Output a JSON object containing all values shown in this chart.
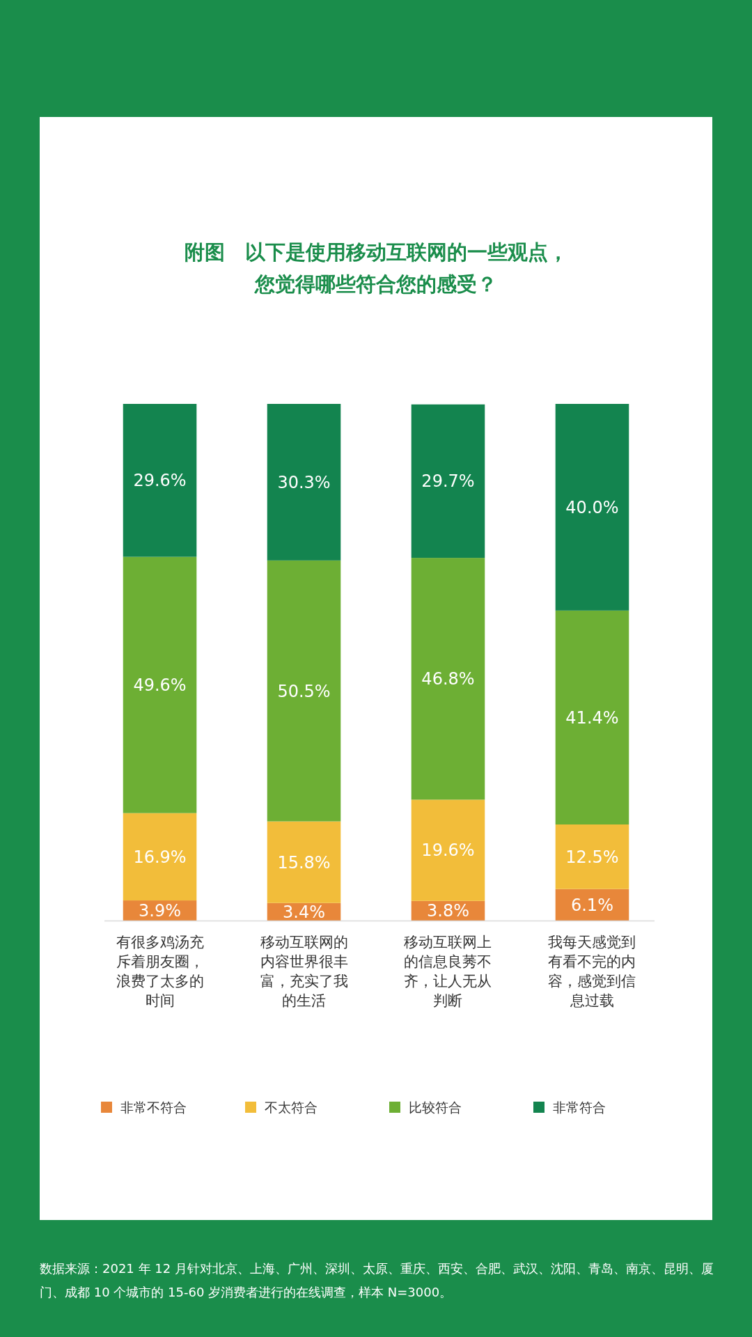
{
  "chart_data": {
    "type": "bar",
    "stacked": true,
    "title": "附图　以下是使用移动互联网的一些观点，您觉得哪些符合您的感受？",
    "categories": [
      "有很多鸡汤充斥着朋友圈，浪费了太多的时间",
      "移动互联网的内容世界很丰富，充实了我的生活",
      "移动互联网上的信息良莠不齐，让人无从判断",
      "我每天感觉到有看不完的内容，感觉到信息过载"
    ],
    "series": [
      {
        "name": "非常不符合",
        "color": "#e8873a",
        "values": [
          3.9,
          3.4,
          3.8,
          6.1
        ],
        "value_labels": [
          "3.9%",
          "3.4%",
          "3.8%",
          "6.1%"
        ]
      },
      {
        "name": "不太符合",
        "color": "#f2bd3a",
        "values": [
          16.9,
          15.8,
          19.6,
          12.5
        ],
        "value_labels": [
          "16.9%",
          "15.8%",
          "19.6%",
          "12.5%"
        ]
      },
      {
        "name": "比较符合",
        "color": "#6daf34",
        "values": [
          49.6,
          50.5,
          46.8,
          41.4
        ],
        "value_labels": [
          "49.6%",
          "50.5%",
          "46.8%",
          "41.4%"
        ]
      },
      {
        "name": "非常符合",
        "color": "#13844f",
        "values": [
          29.6,
          30.3,
          29.7,
          40.0
        ],
        "value_labels": [
          "29.6%",
          "30.3%",
          "29.7%",
          "40.0%"
        ]
      }
    ],
    "legend": "bottom",
    "annotations": [
      "数据来源：2021 年 12 月针对北京、上海、广州、深圳、太原、重庆、西安、合肥、武汉、沈阳、青岛、南京、昆明、厦门、成都 10 个城市的 15-60 岁消费者进行的在线调查，样本 N=3000。"
    ]
  }
}
